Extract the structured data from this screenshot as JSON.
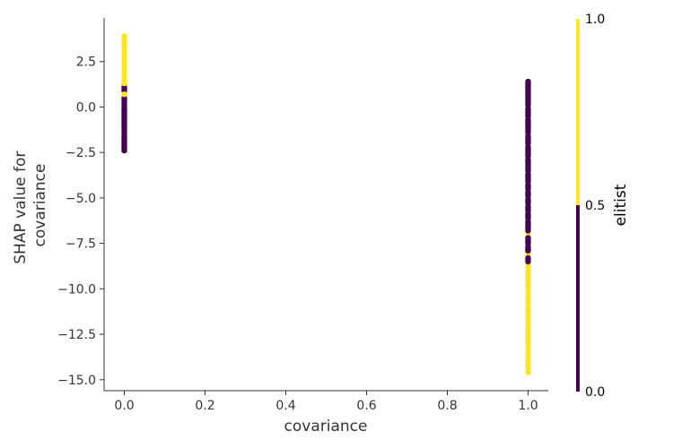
{
  "chart_data": {
    "type": "scatter",
    "title": "",
    "xlabel": "covariance",
    "ylabel_lines": [
      "SHAP value for",
      "covariance"
    ],
    "xlim": [
      -0.05,
      1.05
    ],
    "ylim": [
      -15.6,
      4.9
    ],
    "xticks": [
      0.0,
      0.2,
      0.4,
      0.6,
      0.8,
      1.0
    ],
    "xtick_labels": [
      "0.0",
      "0.2",
      "0.4",
      "0.6",
      "0.8",
      "1.0"
    ],
    "yticks": [
      2.5,
      0.0,
      -2.5,
      -5.0,
      -7.5,
      -10.0,
      -12.5,
      -15.0
    ],
    "ytick_labels": [
      "2.5",
      "0.0",
      "−2.5",
      "−5.0",
      "−7.5",
      "−10.0",
      "−12.5",
      "−15.0"
    ],
    "grid": false,
    "colorbar": {
      "label": "elitist",
      "range": [
        0.0,
        1.0
      ],
      "ticks": [
        0.0,
        0.5,
        1.0
      ],
      "tick_labels": [
        "0.0",
        "0.5",
        "1.0"
      ],
      "color_low": "#440154",
      "color_high": "#fde725"
    },
    "series": [
      {
        "x": 0.0,
        "color": "#440154",
        "points": [
          -2.4,
          -2.3,
          -2.2,
          -2.1,
          -2.0,
          -1.9,
          -1.8,
          -1.7,
          -1.6,
          -1.5,
          -1.4,
          -1.3,
          -1.2,
          -1.1,
          -1.0,
          -0.9,
          -0.8,
          -0.7,
          -0.6,
          -0.5,
          -0.4,
          -0.3,
          -0.2,
          -0.1,
          0.0,
          0.1,
          0.2,
          0.3,
          0.4,
          0.5,
          0.9,
          1.0,
          1.1
        ]
      },
      {
        "x": 0.0,
        "color": "#fde725",
        "points": [
          0.7,
          1.3,
          1.5,
          1.7,
          1.9,
          2.1,
          2.3,
          2.5,
          2.7,
          2.9,
          3.1,
          3.3,
          3.5,
          3.7,
          3.9
        ]
      },
      {
        "x": 1.0,
        "color": "#fde725",
        "points": [
          -14.6,
          -14.4,
          -14.2,
          -14.0,
          -13.8,
          -13.6,
          -13.4,
          -13.2,
          -13.0,
          -12.8,
          -12.6,
          -12.4,
          -12.2,
          -12.0,
          -11.8,
          -11.6,
          -11.4,
          -11.2,
          -11.0,
          -10.8,
          -10.6,
          -10.4,
          -10.2,
          -10.0,
          -9.8,
          -9.6,
          -9.4,
          -9.2,
          -9.0,
          -8.8,
          -8.6,
          -8.2,
          -8.1,
          -8.0,
          -7.6,
          -7.0,
          -6.9,
          -6.2,
          -5.8,
          -5.4,
          -5.0,
          -4.6,
          -4.2,
          -3.6,
          -2.8,
          -2.1,
          -1.5,
          -0.6,
          0.0
        ]
      },
      {
        "x": 1.0,
        "color": "#440154",
        "points": [
          -8.5,
          -8.4,
          -8.3,
          -7.9,
          -7.8,
          -7.7,
          -7.5,
          -7.4,
          -7.3,
          -7.2,
          -6.8,
          -6.7,
          -6.6,
          -6.5,
          -6.4,
          -6.3,
          -6.1,
          -6.0,
          -5.9,
          -5.7,
          -5.6,
          -5.5,
          -5.3,
          -5.2,
          -5.1,
          -4.9,
          -4.8,
          -4.7,
          -4.5,
          -4.4,
          -4.3,
          -4.1,
          -4.0,
          -3.9,
          -3.8,
          -3.7,
          -3.5,
          -3.4,
          -3.3,
          -3.2,
          -3.1,
          -3.0,
          -2.9,
          -2.7,
          -2.6,
          -2.5,
          -2.4,
          -2.3,
          -2.2,
          -2.0,
          -1.9,
          -1.8,
          -1.7,
          -1.6,
          -1.4,
          -1.3,
          -1.2,
          -1.1,
          -1.0,
          -0.9,
          -0.8,
          -0.7,
          -0.5,
          -0.4,
          -0.3,
          -0.2,
          -0.1,
          0.1,
          0.2,
          0.3,
          0.4,
          0.5,
          0.6,
          0.7,
          0.8,
          0.9,
          1.0,
          1.1,
          1.2,
          1.3,
          1.4
        ]
      }
    ]
  }
}
